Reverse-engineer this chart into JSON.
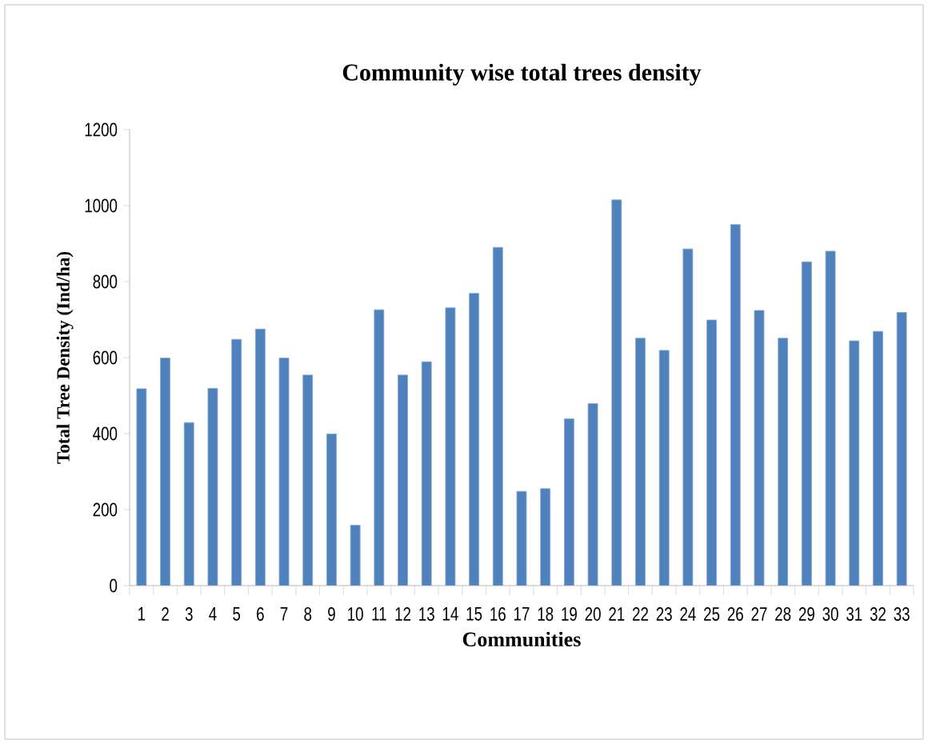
{
  "chart_data": {
    "type": "bar",
    "title": "Community wise total trees density",
    "xlabel": "Communities",
    "ylabel": "Total Tree Density (Ind/ha)",
    "categories": [
      "1",
      "2",
      "3",
      "4",
      "5",
      "6",
      "7",
      "8",
      "9",
      "10",
      "11",
      "12",
      "13",
      "14",
      "15",
      "16",
      "17",
      "18",
      "19",
      "20",
      "21",
      "22",
      "23",
      "24",
      "25",
      "26",
      "27",
      "28",
      "29",
      "30",
      "31",
      "32",
      "33"
    ],
    "values": [
      518,
      599,
      429,
      519,
      648,
      675,
      599,
      554,
      399,
      159,
      726,
      554,
      589,
      731,
      769,
      890,
      248,
      255,
      439,
      479,
      1015,
      651,
      619,
      886,
      699,
      950,
      724,
      651,
      852,
      880,
      644,
      669,
      719
    ],
    "color": "#4f81bd",
    "ylim": [
      0,
      1200
    ],
    "yticks": [
      0,
      200,
      400,
      600,
      800,
      1000,
      1200
    ]
  }
}
